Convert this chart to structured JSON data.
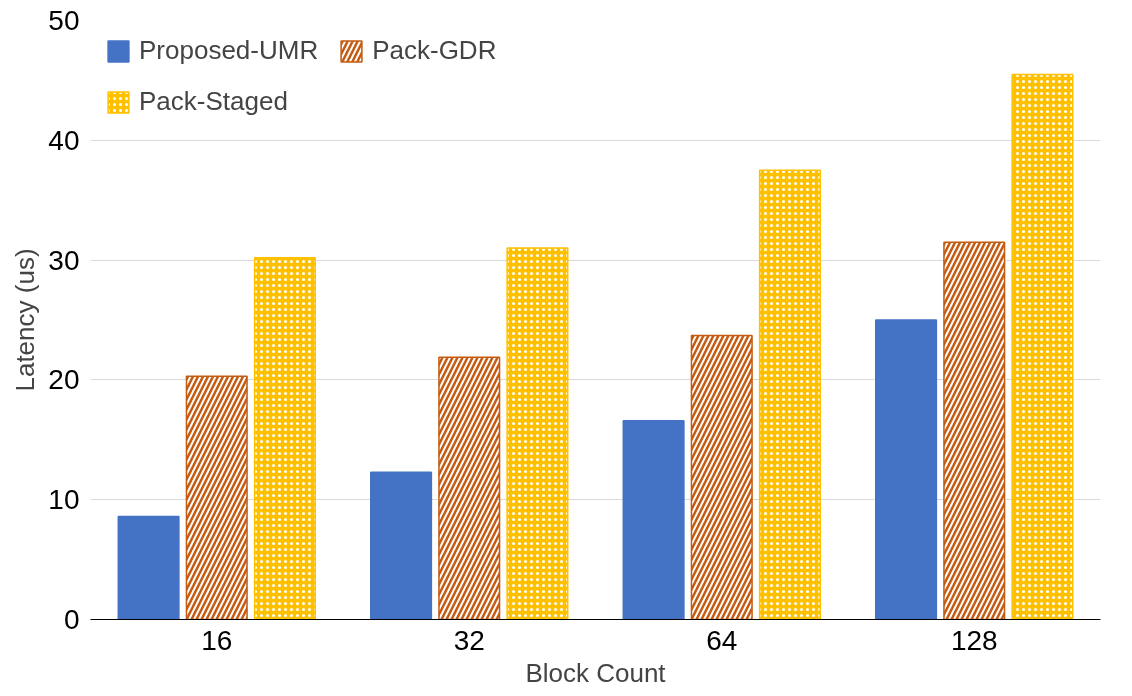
{
  "chart_data": {
    "type": "bar",
    "xlabel": "Block Count",
    "ylabel": "Latency (us)",
    "categories": [
      "16",
      "32",
      "64",
      "128"
    ],
    "series": [
      {
        "name": "Proposed-UMR",
        "color": "#4472c4",
        "values": [
          8.6,
          12.3,
          16.6,
          25.0
        ]
      },
      {
        "name": "Pack-GDR",
        "color": "#c55a11",
        "values": [
          20.3,
          21.9,
          23.7,
          31.5
        ]
      },
      {
        "name": "Pack-Staged",
        "color": "#ffc000",
        "values": [
          30.2,
          31.0,
          37.5,
          45.5
        ]
      }
    ],
    "ylim": [
      0,
      50
    ],
    "yticks": [
      0,
      10,
      20,
      30,
      40,
      50
    ],
    "grid": "y",
    "legend": "top left"
  }
}
